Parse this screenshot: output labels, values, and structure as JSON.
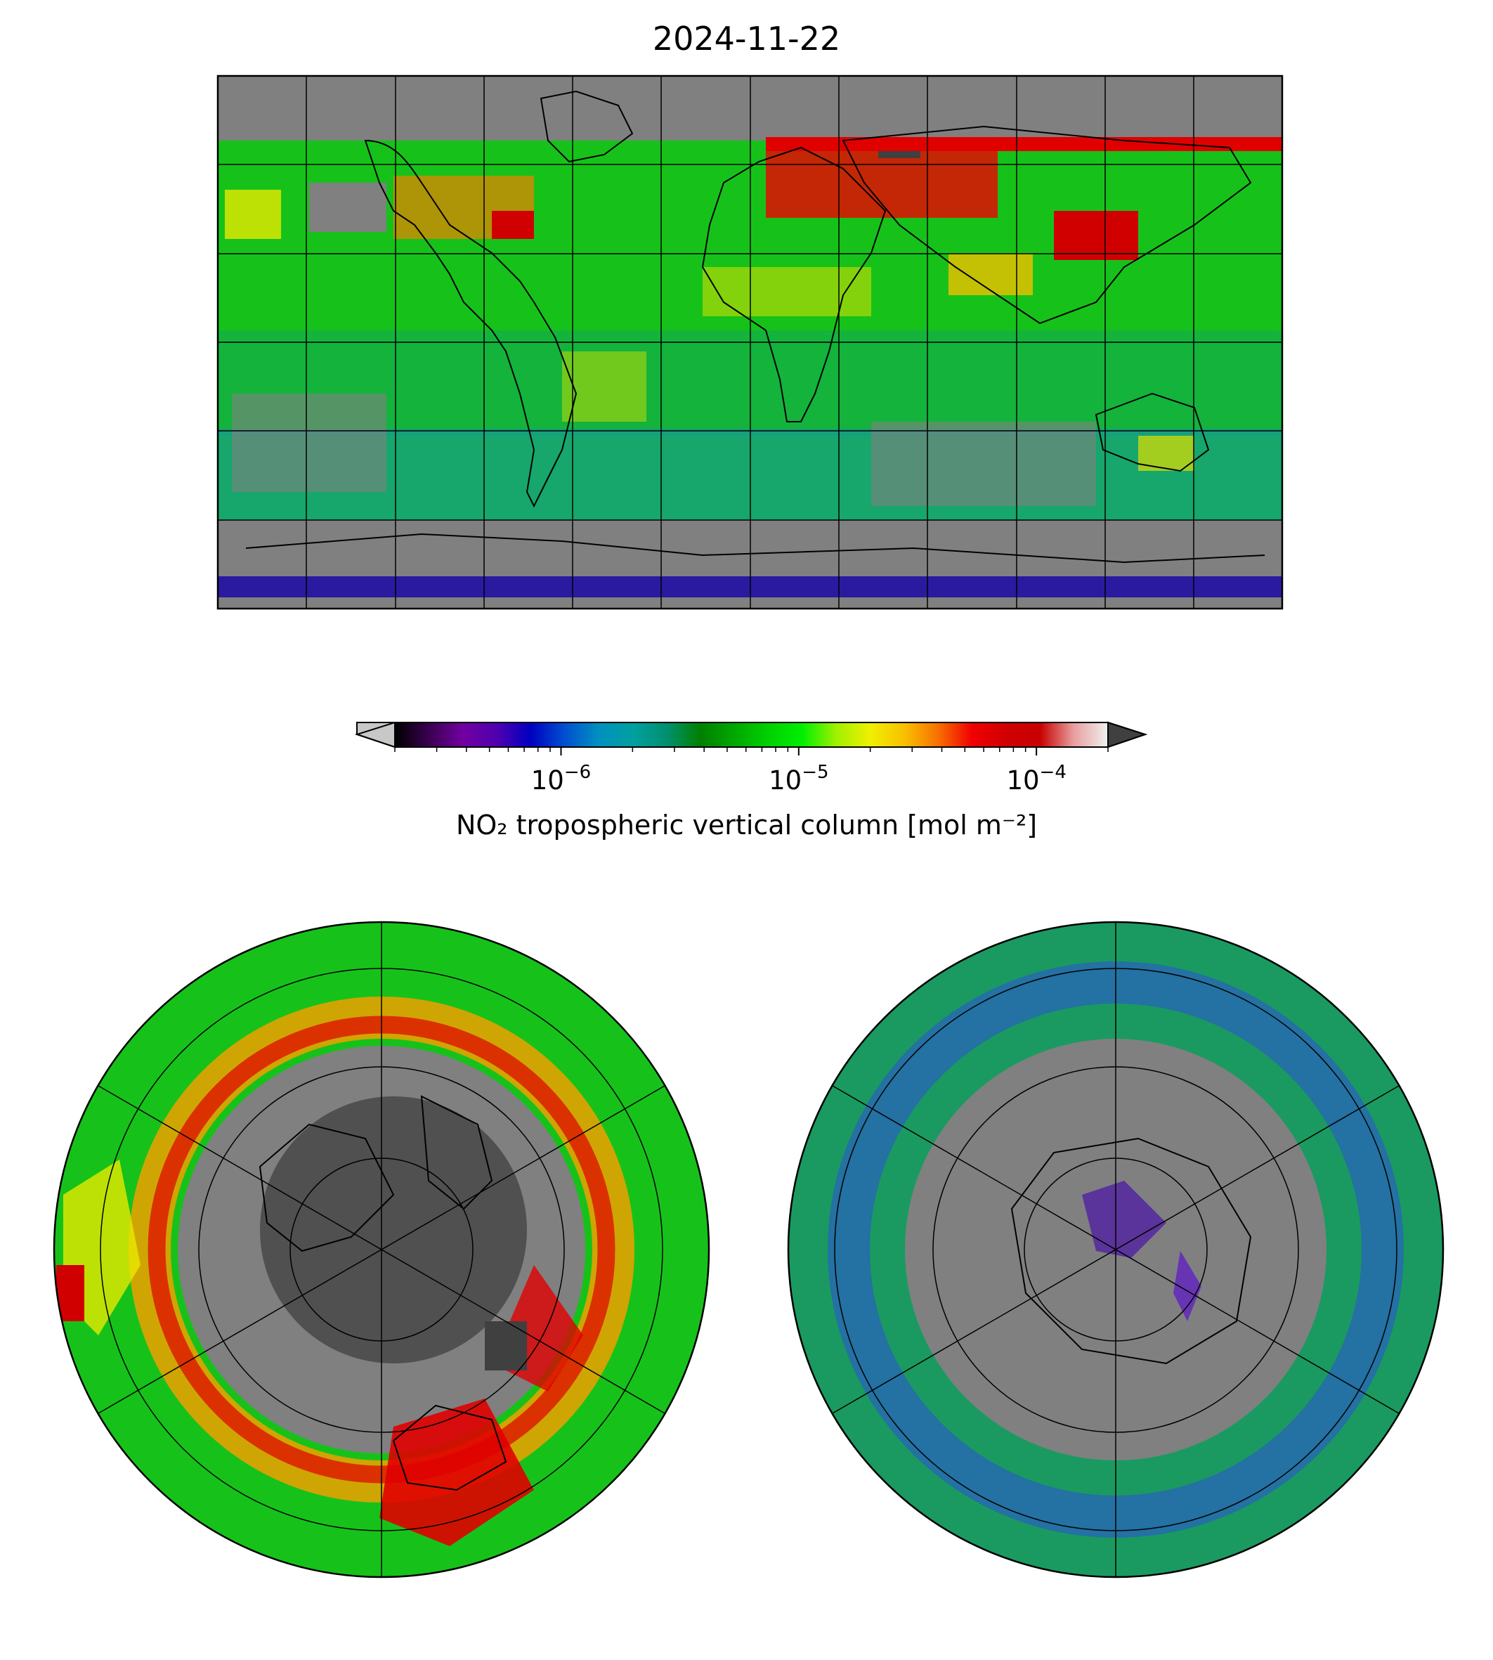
{
  "title": "2024-11-22",
  "colorbar": {
    "label": "NO₂ tropospheric vertical column [mol m⁻²]",
    "scale": "log",
    "range": [
      2e-07,
      0.0002
    ],
    "ticks": [
      {
        "value": 1e-06,
        "base": "10",
        "exp": "−6"
      },
      {
        "value": 1e-05,
        "base": "10",
        "exp": "−5"
      },
      {
        "value": 0.0001,
        "base": "10",
        "exp": "−4"
      }
    ],
    "extend": "both",
    "under_color": "#c8c8c8",
    "over_color": "#404040",
    "colors": [
      "#000000",
      "#3a0050",
      "#7000a0",
      "#5000b0",
      "#0000c0",
      "#0050d0",
      "#0090c0",
      "#00a0a0",
      "#009070",
      "#008000",
      "#00a800",
      "#00d000",
      "#00f000",
      "#a0f000",
      "#f0f000",
      "#f8c000",
      "#f87000",
      "#f00000",
      "#d00000",
      "#c80000",
      "#e8a0a0",
      "#f0f0f0"
    ]
  },
  "panels": [
    {
      "projection": "PlateCarree",
      "region": "global",
      "no_data_color": "#808080"
    },
    {
      "projection": "NorthPolarStereo",
      "region": "arctic",
      "no_data_color": "#808080"
    },
    {
      "projection": "SouthPolarStereo",
      "region": "antarctic",
      "no_data_color": "#808080"
    }
  ]
}
